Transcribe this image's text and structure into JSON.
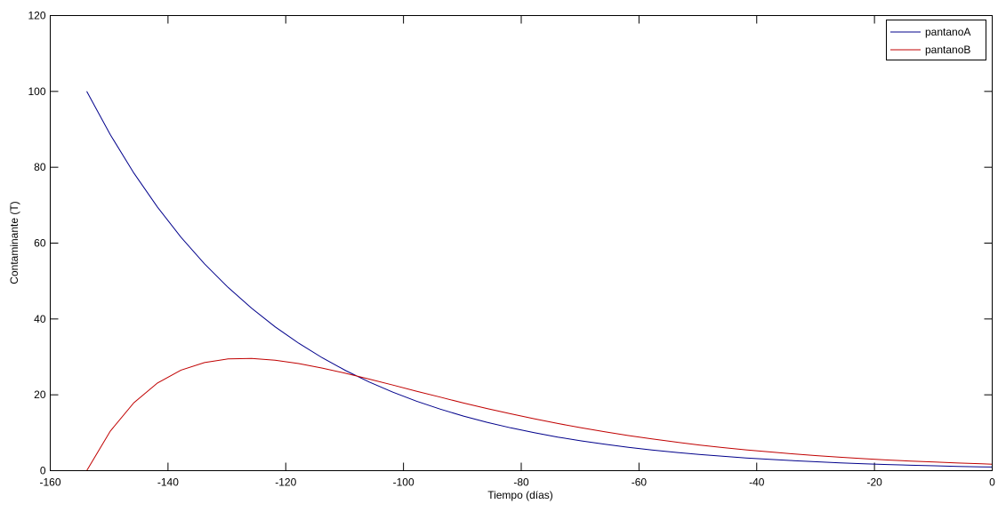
{
  "chart_data": {
    "type": "line",
    "title": "",
    "xlabel": "Tiempo (días)",
    "ylabel": "Contaminante (T)",
    "xlim": [
      -160,
      0
    ],
    "ylim": [
      0,
      120
    ],
    "xticks": [
      -160,
      -140,
      -120,
      -100,
      -80,
      -60,
      -40,
      -20,
      0
    ],
    "yticks": [
      0,
      20,
      40,
      60,
      80,
      100,
      120
    ],
    "grid": false,
    "legend_position": "top-right",
    "x": [
      -153.8,
      -149.8,
      -145.8,
      -141.8,
      -137.8,
      -133.8,
      -129.8,
      -125.8,
      -121.8,
      -117.8,
      -113.8,
      -109.8,
      -105.8,
      -101.8,
      -97.8,
      -93.8,
      -89.8,
      -85.8,
      -81.8,
      -77.8,
      -73.8,
      -69.8,
      -65.8,
      -61.8,
      -57.8,
      -53.8,
      -49.8,
      -45.8,
      -41.8,
      -37.8,
      -33.8,
      -29.8,
      -25.8,
      -21.8,
      -17.8,
      -13.8,
      -9.8,
      -5.8,
      -1.8,
      0
    ],
    "series": [
      {
        "name": "pantanoA",
        "color": "#00008b",
        "values": [
          100,
          88.59,
          78.47,
          69.52,
          61.58,
          54.55,
          48.33,
          42.81,
          37.93,
          33.6,
          29.76,
          26.37,
          23.36,
          20.69,
          18.33,
          16.24,
          14.38,
          12.74,
          11.29,
          10.0,
          8.86,
          7.85,
          6.95,
          6.16,
          5.46,
          4.83,
          4.28,
          3.79,
          3.36,
          2.98,
          2.64,
          2.34,
          2.07,
          1.83,
          1.62,
          1.44,
          1.28,
          1.13,
          1.0,
          0.95
        ]
      },
      {
        "name": "pantanoB",
        "color": "#c00000",
        "values": [
          0,
          10.42,
          17.9,
          23.12,
          26.5,
          28.5,
          29.46,
          29.6,
          29.14,
          28.24,
          27.04,
          25.66,
          24.14,
          22.56,
          20.96,
          19.4,
          17.84,
          16.38,
          15.0,
          13.68,
          12.44,
          11.3,
          10.24,
          9.26,
          8.38,
          7.54,
          6.78,
          6.1,
          5.48,
          4.94,
          4.42,
          3.96,
          3.54,
          3.16,
          2.82,
          2.54,
          2.28,
          2.02,
          1.8,
          1.72
        ]
      }
    ]
  }
}
